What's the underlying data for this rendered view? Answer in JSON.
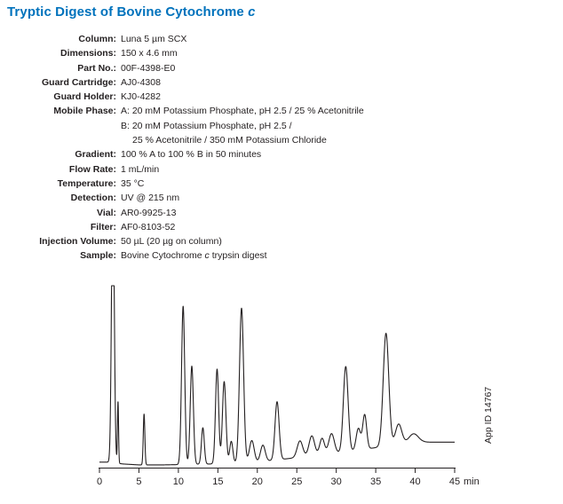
{
  "accent_color": "#0072bc",
  "text_color": "#231f20",
  "title": {
    "parts": [
      {
        "t": "Tryptic Digest of Bovine Cytochrome "
      },
      {
        "t": "c",
        "i": true
      }
    ]
  },
  "conditions": [
    {
      "label": "Column:",
      "lines": [
        {
          "parts": [
            {
              "t": "Luna 5 µm SCX"
            }
          ]
        }
      ]
    },
    {
      "label": "Dimensions:",
      "lines": [
        {
          "parts": [
            {
              "t": "150 x 4.6 mm"
            }
          ]
        }
      ]
    },
    {
      "label": "Part No.:",
      "lines": [
        {
          "parts": [
            {
              "t": "00F-4398-E0"
            }
          ]
        }
      ]
    },
    {
      "label": "Guard Cartridge:",
      "lines": [
        {
          "parts": [
            {
              "t": "AJ0-4308"
            }
          ]
        }
      ]
    },
    {
      "label": "Guard Holder:",
      "lines": [
        {
          "parts": [
            {
              "t": "KJ0-4282"
            }
          ]
        }
      ]
    },
    {
      "label": "Mobile Phase:",
      "lines": [
        {
          "parts": [
            {
              "t": "A: 20 mM Potassium Phosphate, pH 2.5 / 25 % Acetonitrile"
            }
          ]
        },
        {
          "parts": [
            {
              "t": "B: 20 mM Potassium Phosphate, pH 2.5 /"
            }
          ]
        },
        {
          "parts": [
            {
              "t": "25 % Acetonitrile / 350 mM Potassium Chloride"
            }
          ],
          "indent": true
        }
      ]
    },
    {
      "label": "Gradient:",
      "lines": [
        {
          "parts": [
            {
              "t": "100 % A to 100 % B in 50 minutes"
            }
          ]
        }
      ]
    },
    {
      "label": "Flow Rate:",
      "lines": [
        {
          "parts": [
            {
              "t": "1 mL/min"
            }
          ]
        }
      ]
    },
    {
      "label": "Temperature:",
      "lines": [
        {
          "parts": [
            {
              "t": "35 °C"
            }
          ]
        }
      ]
    },
    {
      "label": "Detection:",
      "lines": [
        {
          "parts": [
            {
              "t": "UV @ 215 nm"
            }
          ]
        }
      ]
    },
    {
      "label": "Vial:",
      "lines": [
        {
          "parts": [
            {
              "t": "AR0-9925-13"
            }
          ]
        }
      ]
    },
    {
      "label": "Filter:",
      "lines": [
        {
          "parts": [
            {
              "t": "AF0-8103-52"
            }
          ]
        }
      ]
    },
    {
      "label": "Injection Volume:",
      "lines": [
        {
          "parts": [
            {
              "t": "50 µL (20 µg on column)"
            }
          ]
        }
      ]
    },
    {
      "label": "Sample:",
      "lines": [
        {
          "parts": [
            {
              "t": "Bovine Cytochrome "
            },
            {
              "t": "c",
              "i": true
            },
            {
              "t": " trypsin digest"
            }
          ]
        }
      ]
    }
  ],
  "chart_data": {
    "type": "line",
    "title": "",
    "xlabel": "min",
    "ylabel": "",
    "xlim": [
      0,
      45
    ],
    "ylim": [
      0,
      1.05
    ],
    "x_ticks": [
      0,
      5,
      10,
      15,
      20,
      25,
      30,
      35,
      40,
      45
    ],
    "grid": false,
    "y_axis_visible": false,
    "line_color": "#231f20",
    "app_id": "App ID 14767",
    "peaks": [
      {
        "rt": 1.7,
        "h": 1.6,
        "sigma": 0.17
      },
      {
        "rt": 2.35,
        "h": 0.34,
        "sigma": 0.07
      },
      {
        "rt": 5.65,
        "h": 0.28,
        "sigma": 0.1
      },
      {
        "rt": 10.6,
        "h": 0.87,
        "sigma": 0.2
      },
      {
        "rt": 11.7,
        "h": 0.54,
        "sigma": 0.2
      },
      {
        "rt": 13.1,
        "h": 0.2,
        "sigma": 0.18
      },
      {
        "rt": 14.9,
        "h": 0.52,
        "sigma": 0.2
      },
      {
        "rt": 15.8,
        "h": 0.45,
        "sigma": 0.22
      },
      {
        "rt": 16.7,
        "h": 0.12,
        "sigma": 0.2
      },
      {
        "rt": 18.0,
        "h": 0.85,
        "sigma": 0.26
      },
      {
        "rt": 19.3,
        "h": 0.12,
        "sigma": 0.3
      },
      {
        "rt": 20.7,
        "h": 0.09,
        "sigma": 0.3
      },
      {
        "rt": 22.5,
        "h": 0.32,
        "sigma": 0.26
      },
      {
        "rt": 25.4,
        "h": 0.09,
        "sigma": 0.35
      },
      {
        "rt": 26.9,
        "h": 0.11,
        "sigma": 0.35
      },
      {
        "rt": 28.2,
        "h": 0.09,
        "sigma": 0.3
      },
      {
        "rt": 29.4,
        "h": 0.11,
        "sigma": 0.35
      },
      {
        "rt": 31.2,
        "h": 0.47,
        "sigma": 0.3
      },
      {
        "rt": 32.8,
        "h": 0.12,
        "sigma": 0.28
      },
      {
        "rt": 33.6,
        "h": 0.19,
        "sigma": 0.25
      },
      {
        "rt": 36.3,
        "h": 0.62,
        "sigma": 0.35
      },
      {
        "rt": 37.9,
        "h": 0.11,
        "sigma": 0.4
      },
      {
        "rt": 39.8,
        "h": 0.05,
        "sigma": 0.6
      }
    ],
    "baseline": [
      [
        0,
        0.03
      ],
      [
        1.2,
        0.03
      ],
      [
        3.0,
        0.02
      ],
      [
        5.0,
        0.015
      ],
      [
        8.0,
        0.015
      ],
      [
        14,
        0.02
      ],
      [
        20,
        0.03
      ],
      [
        24,
        0.05
      ],
      [
        28,
        0.07
      ],
      [
        32,
        0.09
      ],
      [
        35,
        0.11
      ],
      [
        38,
        0.13
      ],
      [
        41,
        0.14
      ],
      [
        45,
        0.14
      ]
    ]
  }
}
